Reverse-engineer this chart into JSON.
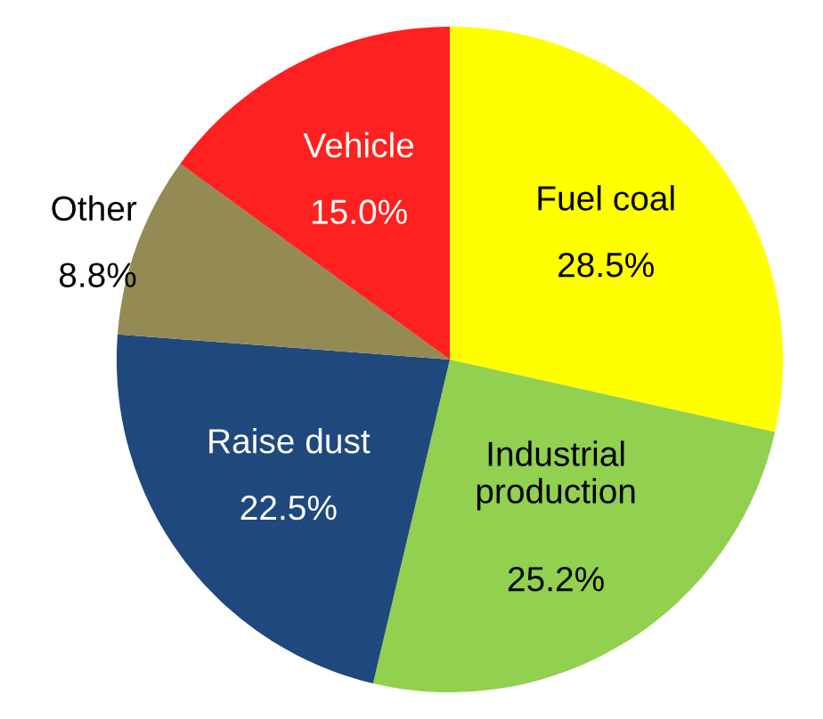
{
  "chart_data": {
    "type": "pie",
    "categories": [
      "Fuel coal",
      "Industrial production",
      "Raise dust",
      "Other",
      "Vehicle"
    ],
    "values": [
      28.5,
      25.2,
      22.5,
      8.8,
      15.0
    ],
    "value_labels": [
      "28.5%",
      "25.2%",
      "22.5%",
      "8.8%",
      "15.0%"
    ],
    "colors": [
      "#ffff00",
      "#92d050",
      "#1f497d",
      "#948a54",
      "#ff2020"
    ]
  }
}
